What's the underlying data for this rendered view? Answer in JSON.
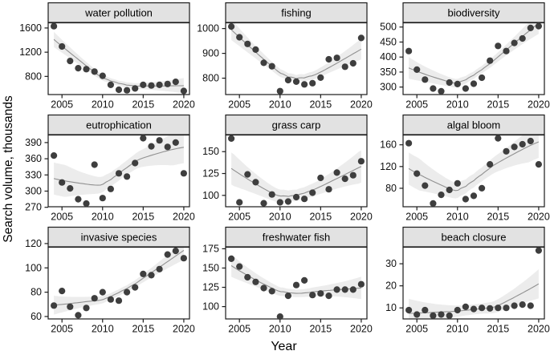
{
  "chart": {
    "y_axis_title": "Search volume, thousands",
    "x_axis_title": "Year",
    "years": [
      2004,
      2005,
      2006,
      2007,
      2008,
      2009,
      2010,
      2011,
      2012,
      2013,
      2014,
      2015,
      2016,
      2017,
      2018,
      2019,
      2020
    ],
    "x_ticks": [
      2005,
      2010,
      2015,
      2020
    ],
    "xlim": [
      2003.3,
      2020.7
    ],
    "colors": {
      "point": "#3e3e3e",
      "smooth_line": "#909090",
      "ribbon": "rgba(0,0,0,0.075)",
      "strip_bg": "#e2e2e2",
      "border": "#1b1b1b",
      "text": "#111111"
    }
  },
  "chart_data": [
    {
      "type": "scatter",
      "title": "water pollution",
      "smooth": "loess",
      "values": [
        1630,
        1295,
        1055,
        935,
        920,
        880,
        810,
        660,
        580,
        570,
        600,
        660,
        650,
        660,
        675,
        710,
        560
      ],
      "y_ticks": [
        800,
        1200,
        1600
      ],
      "ylim": [
        500,
        1685
      ]
    },
    {
      "type": "scatter",
      "title": "fishing",
      "smooth": "loess",
      "values": [
        1008,
        965,
        938,
        915,
        862,
        848,
        748,
        792,
        786,
        775,
        780,
        802,
        876,
        882,
        846,
        860,
        962
      ],
      "y_ticks": [
        800,
        900,
        1000
      ],
      "ylim": [
        734,
        1023
      ]
    },
    {
      "type": "scatter",
      "title": "biodiversity",
      "smooth": "loess",
      "values": [
        420,
        358,
        325,
        295,
        286,
        315,
        310,
        295,
        311,
        331,
        388,
        437,
        420,
        447,
        462,
        497,
        503
      ],
      "y_ticks": [
        300,
        350,
        400,
        450,
        500
      ],
      "ylim": [
        275,
        514
      ]
    },
    {
      "type": "scatter",
      "title": "eutrophication",
      "smooth": "loess",
      "values": [
        366,
        316,
        305,
        285,
        277,
        349,
        287,
        304,
        333,
        327,
        352,
        398,
        383,
        394,
        382,
        390,
        333
      ],
      "y_ticks": [
        270,
        300,
        330,
        360,
        390
      ],
      "ylim": [
        271,
        404
      ]
    },
    {
      "type": "scatter",
      "title": "grass carp",
      "smooth": "loess",
      "values": [
        165,
        92,
        124,
        115,
        91,
        101,
        92,
        93,
        98,
        96,
        103,
        120,
        107,
        126,
        119,
        123,
        139
      ],
      "y_ticks": [
        100,
        125,
        150
      ],
      "ylim": [
        87,
        169
      ]
    },
    {
      "type": "scatter",
      "title": "algal bloom",
      "smooth": "loess",
      "values": [
        163,
        107,
        85,
        52,
        68,
        77,
        89,
        60,
        66,
        80,
        124,
        172,
        148,
        156,
        161,
        167,
        124
      ],
      "y_ticks": [
        80,
        120,
        160
      ],
      "ylim": [
        46,
        178
      ]
    },
    {
      "type": "scatter",
      "title": "invasive species",
      "smooth": "loess",
      "values": [
        69,
        81,
        68,
        61,
        67,
        75,
        80,
        74,
        73,
        80,
        84,
        95,
        94,
        99,
        111,
        114,
        108
      ],
      "y_ticks": [
        60,
        80,
        100,
        120
      ],
      "ylim": [
        58,
        117
      ]
    },
    {
      "type": "scatter",
      "title": "freshwater fish",
      "smooth": "loess",
      "values": [
        162,
        152,
        138,
        132,
        124,
        120,
        87,
        114,
        128,
        134,
        115,
        117,
        114,
        122,
        122,
        122,
        129
      ],
      "y_ticks": [
        100,
        125,
        150,
        175
      ],
      "ylim": [
        84,
        177
      ]
    },
    {
      "type": "scatter",
      "title": "beach closure",
      "smooth": "loess",
      "values": [
        9,
        7,
        9,
        6.5,
        7,
        6.5,
        9,
        10.5,
        9.5,
        10,
        9.8,
        10,
        10,
        11,
        11.5,
        11,
        36
      ],
      "y_ticks": [
        10,
        20,
        30
      ],
      "ylim": [
        5,
        37.5
      ]
    }
  ]
}
